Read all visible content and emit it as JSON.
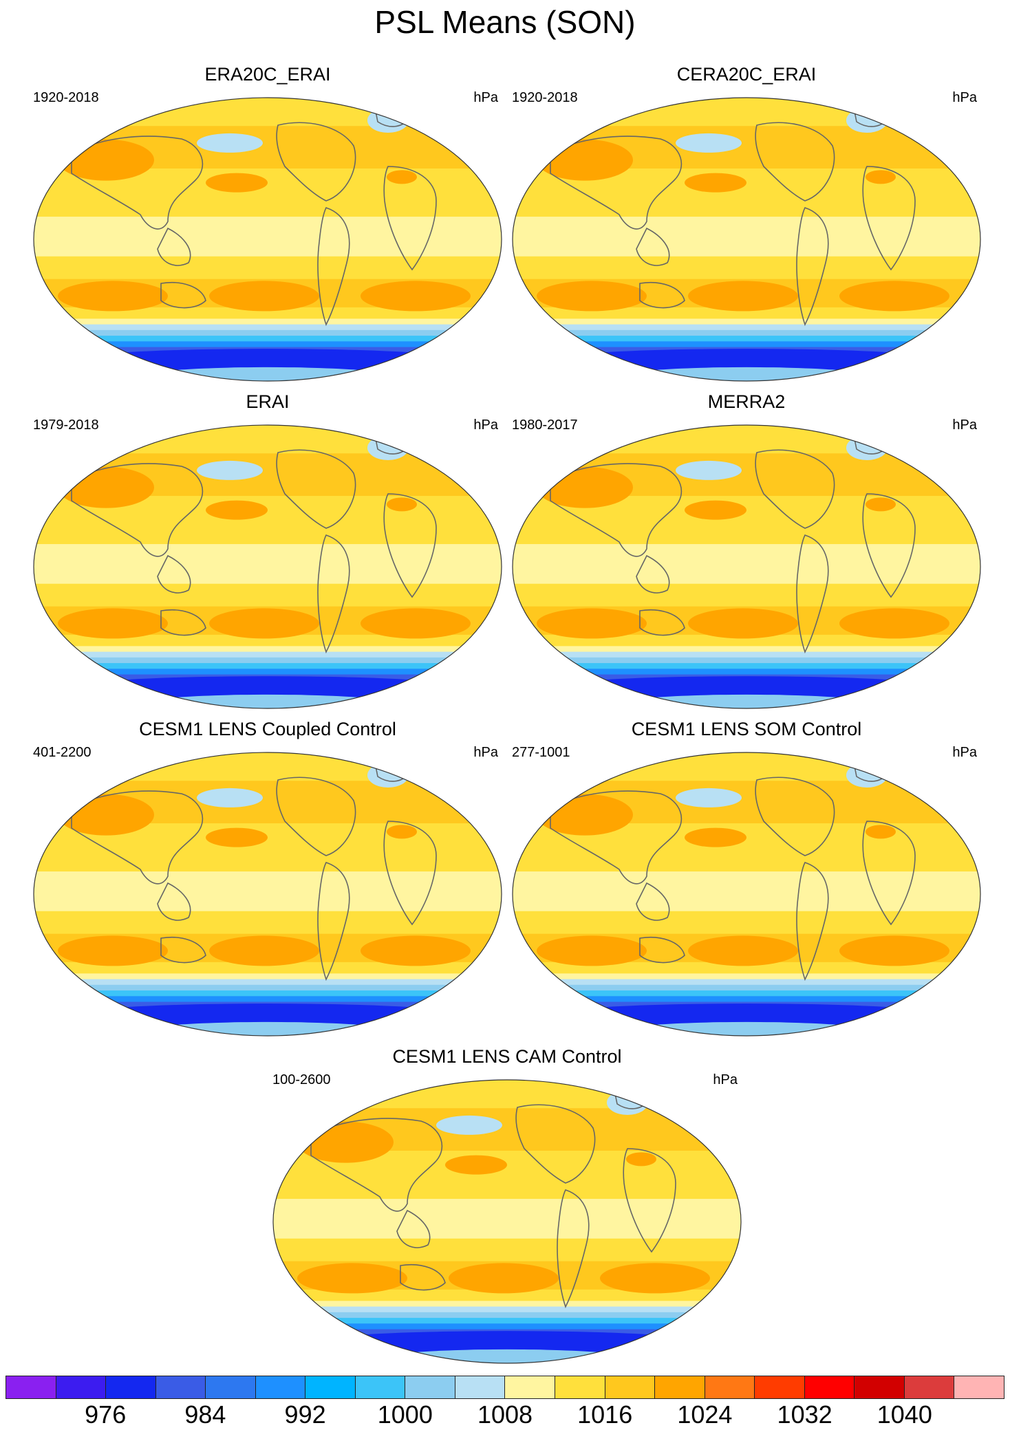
{
  "title": "PSL Means (SON)",
  "units": "hPa",
  "panels": [
    {
      "title": "ERA20C_ERAI",
      "years": "1920-2018"
    },
    {
      "title": "CERA20C_ERAI",
      "years": "1920-2018"
    },
    {
      "title": "ERAI",
      "years": "1979-2018"
    },
    {
      "title": "MERRA2",
      "years": "1980-2017"
    },
    {
      "title": "CESM1 LENS Coupled Control",
      "years": "401-2200"
    },
    {
      "title": "CESM1 LENS SOM Control",
      "years": "277-1001"
    },
    {
      "title": "CESM1 LENS CAM Control",
      "years": "100-2600"
    }
  ],
  "colorbar": {
    "colors": [
      "#8a20f0",
      "#3c1cf0",
      "#1428f0",
      "#3a5ce6",
      "#2d78f0",
      "#1e90ff",
      "#00b4ff",
      "#3cc4f8",
      "#8ccdf0",
      "#b8e0f4",
      "#fff5a0",
      "#ffe03c",
      "#ffc81e",
      "#ffa500",
      "#ff7814",
      "#ff3c00",
      "#ff0000",
      "#d20000",
      "#dc3c3c",
      "#ffb4b4"
    ],
    "labels": [
      "976",
      "984",
      "992",
      "1000",
      "1008",
      "1016",
      "1024",
      "1032",
      "1040"
    ]
  }
}
